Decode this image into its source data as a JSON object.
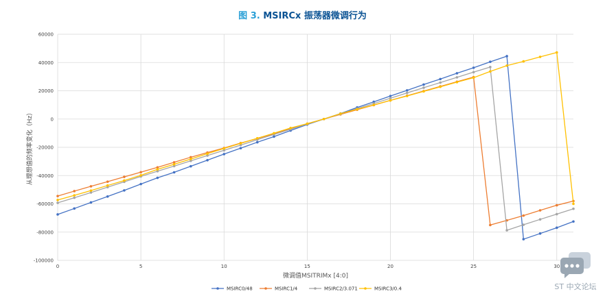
{
  "title": {
    "fig_prefix": "图",
    "fig_number": "3.",
    "text": "MSIRCx 振荡器微调行为"
  },
  "watermark": {
    "text": "ST 中文论坛"
  },
  "chart_data": {
    "type": "line",
    "xlabel": "微调值MSITRIMx [4:0]",
    "ylabel": "从理想值的频率变化（Hz）",
    "xlim": [
      0,
      31
    ],
    "ylim": [
      -100000,
      60000
    ],
    "x_ticks": [
      0,
      5,
      10,
      15,
      20,
      25,
      30
    ],
    "y_ticks": [
      -100000,
      -80000,
      -60000,
      -40000,
      -20000,
      0,
      20000,
      40000,
      60000
    ],
    "grid": true,
    "legend_position": "bottom",
    "series": [
      {
        "name": "MSIRC0/48",
        "color": "#4472c4",
        "x": [
          0,
          1,
          2,
          3,
          4,
          5,
          6,
          7,
          8,
          9,
          10,
          11,
          12,
          13,
          14,
          15,
          16,
          17,
          18,
          19,
          20,
          21,
          22,
          23,
          24,
          25,
          26,
          27,
          28,
          29,
          30,
          31
        ],
        "values": [
          -67500,
          -63300,
          -59000,
          -54800,
          -50500,
          -46000,
          -41600,
          -37700,
          -33400,
          -29100,
          -24800,
          -20600,
          -16400,
          -12400,
          -8100,
          -3900,
          0,
          3900,
          8200,
          12200,
          16300,
          20300,
          24400,
          28300,
          32400,
          36300,
          40500,
          44500,
          -85000,
          -81000,
          -76900,
          -72500
        ]
      },
      {
        "name": "MSIRC1/4",
        "color": "#ed7d31",
        "x": [
          0,
          1,
          2,
          3,
          4,
          5,
          6,
          7,
          8,
          9,
          10,
          11,
          12,
          13,
          14,
          15,
          16,
          17,
          18,
          19,
          20,
          21,
          22,
          23,
          24,
          25,
          26,
          27,
          28,
          29,
          30,
          31
        ],
        "values": [
          -54500,
          -51000,
          -47600,
          -44300,
          -40900,
          -37600,
          -34200,
          -30600,
          -27000,
          -23700,
          -20500,
          -17000,
          -13800,
          -10400,
          -6700,
          -3300,
          0,
          3300,
          6600,
          9900,
          13200,
          16500,
          19800,
          23100,
          26400,
          29700,
          -75000,
          -71700,
          -68300,
          -64600,
          -61000,
          -58000
        ]
      },
      {
        "name": "MSIRC2/3.071",
        "color": "#a5a5a5",
        "x": [
          0,
          1,
          2,
          3,
          4,
          5,
          6,
          7,
          8,
          9,
          10,
          11,
          12,
          13,
          14,
          15,
          16,
          17,
          18,
          19,
          20,
          21,
          22,
          23,
          24,
          25,
          26,
          27,
          28,
          29,
          30,
          31
        ],
        "values": [
          -59300,
          -55700,
          -52000,
          -48200,
          -44400,
          -40600,
          -36900,
          -33300,
          -29600,
          -25800,
          -22100,
          -18400,
          -14600,
          -10900,
          -7200,
          -3600,
          0,
          3600,
          7400,
          11000,
          14700,
          18500,
          22200,
          25800,
          29500,
          33200,
          36800,
          -78700,
          -74800,
          -71000,
          -67300,
          -63500
        ]
      },
      {
        "name": "MSIRC3/0.4",
        "color": "#ffc000",
        "x": [
          0,
          1,
          2,
          3,
          4,
          5,
          6,
          7,
          8,
          9,
          10,
          11,
          12,
          13,
          14,
          15,
          16,
          17,
          18,
          19,
          20,
          21,
          22,
          23,
          24,
          25,
          26,
          27,
          28,
          29,
          30,
          31
        ],
        "values": [
          -57300,
          -54000,
          -50600,
          -47000,
          -43500,
          -39800,
          -35600,
          -32000,
          -28300,
          -24500,
          -20800,
          -17200,
          -13600,
          -10000,
          -6300,
          -3300,
          0,
          3800,
          6900,
          10000,
          13200,
          16300,
          19600,
          22800,
          26100,
          29300,
          33700,
          37800,
          40800,
          44000,
          47100,
          -60000
        ]
      }
    ]
  }
}
